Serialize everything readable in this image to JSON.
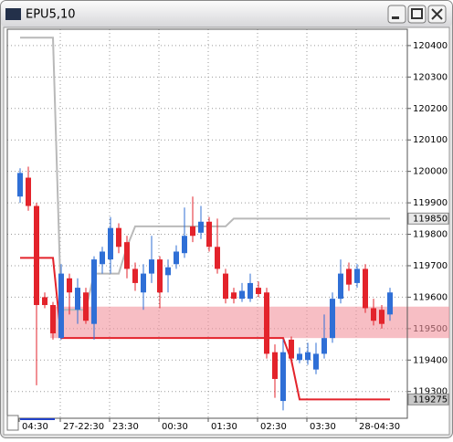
{
  "window": {
    "title": "EPU5,10"
  },
  "chart_data": {
    "type": "candlestick",
    "categories": [
      "04:30",
      null,
      null,
      null,
      null,
      "27-22:30",
      null,
      null,
      null,
      null,
      null,
      "23:30",
      null,
      null,
      null,
      null,
      null,
      "00:30",
      null,
      null,
      null,
      null,
      null,
      "01:30",
      null,
      null,
      null,
      null,
      null,
      "02:30",
      null,
      null,
      null,
      null,
      null,
      "03:30",
      null,
      null,
      null,
      null,
      null,
      "28-04:30",
      null,
      null,
      null,
      null
    ],
    "open": [
      119920,
      119980,
      119890,
      119600,
      119575,
      119470,
      119660,
      119560,
      119615,
      119515,
      119705,
      119720,
      119820,
      119775,
      119690,
      119615,
      119675,
      119720,
      119670,
      119705,
      119740,
      119825,
      119805,
      119840,
      119760,
      119675,
      119615,
      119595,
      119595,
      119630,
      119615,
      119425,
      119270,
      119465,
      119400,
      119400,
      119370,
      119420,
      119470,
      119595,
      119690,
      119645,
      119690,
      119565,
      119560,
      119545
    ],
    "high": [
      120010,
      120015,
      119900,
      119615,
      119585,
      119705,
      119675,
      119660,
      119630,
      119730,
      119760,
      119855,
      119835,
      119795,
      119710,
      119705,
      119795,
      119730,
      119720,
      119765,
      119885,
      119920,
      119890,
      119855,
      119850,
      119690,
      119630,
      119645,
      119675,
      119650,
      119630,
      119450,
      119465,
      119475,
      119440,
      119455,
      119455,
      119545,
      119615,
      119720,
      119710,
      119705,
      119705,
      119595,
      119575,
      119630
    ],
    "low": [
      119900,
      119875,
      119320,
      119565,
      119465,
      119465,
      119545,
      119515,
      119515,
      119465,
      119675,
      119675,
      119740,
      119660,
      119620,
      119560,
      119645,
      119565,
      119615,
      119690,
      119725,
      119775,
      119785,
      119745,
      119675,
      119580,
      119580,
      119585,
      119585,
      119600,
      119405,
      119280,
      119240,
      119390,
      119390,
      119385,
      119355,
      119405,
      119455,
      119580,
      119620,
      119630,
      119550,
      119510,
      119500,
      119525
    ],
    "close": [
      119995,
      119890,
      119575,
      119575,
      119485,
      119675,
      119615,
      119630,
      119525,
      119720,
      119745,
      119820,
      119760,
      119690,
      119645,
      119675,
      119720,
      119615,
      119695,
      119745,
      119795,
      119795,
      119840,
      119760,
      119690,
      119595,
      119595,
      119620,
      119645,
      119610,
      119420,
      119340,
      119425,
      119405,
      119420,
      119425,
      119420,
      119470,
      119595,
      119675,
      119640,
      119690,
      119565,
      119525,
      119515,
      119615
    ],
    "up_color": "#2f6fd6",
    "down_color": "#e3232b",
    "lines": [
      {
        "color": "#b9b9b9",
        "values": [
          120425,
          120425,
          120425,
          120425,
          120425,
          119560,
          119560,
          119560,
          119560,
          119675,
          119675,
          119675,
          119675,
          119760,
          119825,
          119825,
          119825,
          119825,
          119825,
          119825,
          119825,
          119825,
          119825,
          119825,
          119825,
          119825,
          119850,
          119850,
          119850,
          119850,
          119850,
          119850,
          119850,
          119850,
          119850,
          119850,
          119850,
          119850,
          119850,
          119850,
          119850,
          119850,
          119850,
          119850,
          119850,
          119850
        ]
      },
      {
        "color": "#e3232b",
        "values": [
          119725,
          119725,
          119725,
          119725,
          119725,
          119470,
          119470,
          119470,
          119470,
          119470,
          119470,
          119470,
          119470,
          119470,
          119470,
          119470,
          119470,
          119470,
          119470,
          119470,
          119470,
          119470,
          119470,
          119470,
          119470,
          119470,
          119470,
          119470,
          119470,
          119470,
          119470,
          119470,
          119470,
          119400,
          119275,
          119275,
          119275,
          119275,
          119275,
          119275,
          119275,
          119275,
          119275,
          119275,
          119275,
          119275
        ]
      }
    ],
    "band": {
      "from": 119470,
      "to": 119570,
      "color": "#f2929c"
    },
    "markers": [
      119850,
      119275
    ],
    "ylim": [
      119215,
      120452
    ],
    "yticks": [
      120400,
      120300,
      120200,
      120100,
      120000,
      119900,
      119800,
      119700,
      119600,
      119500,
      119400,
      119300
    ],
    "grid": true
  }
}
